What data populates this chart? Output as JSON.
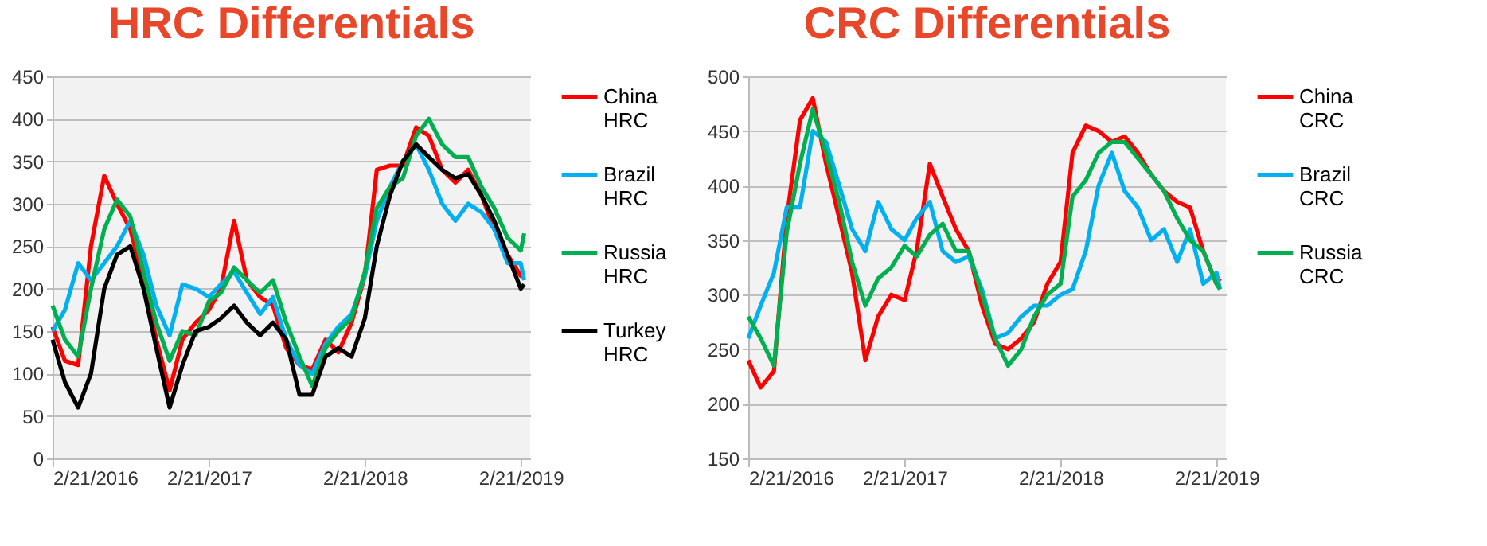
{
  "chart_data": [
    {
      "type": "line",
      "title": "HRC Differentials",
      "x": [
        "2016-02-21",
        "2016-03-21",
        "2016-04-21",
        "2016-05-21",
        "2016-06-21",
        "2016-07-21",
        "2016-08-21",
        "2016-09-21",
        "2016-10-21",
        "2016-11-21",
        "2016-12-21",
        "2017-01-21",
        "2017-02-21",
        "2017-03-21",
        "2017-04-21",
        "2017-05-21",
        "2017-06-21",
        "2017-07-21",
        "2017-08-21",
        "2017-09-21",
        "2017-10-21",
        "2017-11-21",
        "2017-12-21",
        "2018-01-21",
        "2018-02-21",
        "2018-03-21",
        "2018-04-21",
        "2018-05-21",
        "2018-06-21",
        "2018-07-21",
        "2018-08-21",
        "2018-09-21",
        "2018-10-21",
        "2018-11-21",
        "2018-12-21",
        "2019-01-21",
        "2019-02-21",
        "2019-03-01"
      ],
      "series": [
        {
          "name": "China HRC",
          "color": "#ff0000",
          "values": [
            155,
            115,
            110,
            250,
            333,
            300,
            270,
            210,
            140,
            80,
            140,
            160,
            175,
            200,
            280,
            210,
            190,
            180,
            130,
            110,
            105,
            140,
            125,
            160,
            215,
            340,
            345,
            345,
            390,
            380,
            340,
            325,
            340,
            310,
            270,
            240,
            215,
            215
          ]
        },
        {
          "name": "Brazil HRC",
          "color": "#00b0f0",
          "values": [
            150,
            175,
            230,
            210,
            230,
            250,
            280,
            240,
            180,
            145,
            205,
            200,
            190,
            205,
            220,
            195,
            170,
            190,
            140,
            110,
            100,
            135,
            155,
            170,
            215,
            280,
            320,
            350,
            370,
            340,
            300,
            280,
            300,
            290,
            270,
            230,
            230,
            210
          ]
        },
        {
          "name": "Russia HRC",
          "color": "#00b050",
          "values": [
            180,
            140,
            120,
            200,
            270,
            305,
            285,
            220,
            160,
            115,
            150,
            145,
            185,
            195,
            225,
            210,
            195,
            210,
            160,
            120,
            85,
            130,
            150,
            165,
            220,
            295,
            320,
            330,
            380,
            400,
            370,
            355,
            355,
            320,
            295,
            260,
            245,
            265
          ]
        },
        {
          "name": "Turkey HRC",
          "color": "#000000",
          "values": [
            140,
            90,
            60,
            100,
            200,
            240,
            250,
            200,
            130,
            60,
            110,
            150,
            155,
            165,
            180,
            160,
            145,
            160,
            140,
            75,
            75,
            120,
            130,
            120,
            165,
            250,
            310,
            350,
            370,
            355,
            340,
            330,
            335,
            310,
            280,
            240,
            200,
            205
          ]
        }
      ],
      "xlim": [
        "2016-02-21",
        "2019-03-15"
      ],
      "xticks": [
        {
          "value": "2016-02-21",
          "label": "2/21/2016"
        },
        {
          "value": "2017-02-21",
          "label": "2/21/2017"
        },
        {
          "value": "2018-02-21",
          "label": "2/21/2018"
        },
        {
          "value": "2019-02-21",
          "label": "2/21/2019"
        }
      ],
      "ylim": [
        0,
        450
      ],
      "yticks": [
        0,
        50,
        100,
        150,
        200,
        250,
        300,
        350,
        400,
        450
      ],
      "grid": "y",
      "legend": "right",
      "line_style": "solid",
      "marker": "none"
    },
    {
      "type": "line",
      "title": "CRC Differentials",
      "x": [
        "2016-02-21",
        "2016-03-21",
        "2016-04-21",
        "2016-05-21",
        "2016-06-21",
        "2016-07-21",
        "2016-08-21",
        "2016-09-21",
        "2016-10-21",
        "2016-11-21",
        "2016-12-21",
        "2017-01-21",
        "2017-02-21",
        "2017-03-21",
        "2017-04-21",
        "2017-05-21",
        "2017-06-21",
        "2017-07-21",
        "2017-08-21",
        "2017-09-21",
        "2017-10-21",
        "2017-11-21",
        "2017-12-21",
        "2018-01-21",
        "2018-02-21",
        "2018-03-21",
        "2018-04-21",
        "2018-05-21",
        "2018-06-21",
        "2018-07-21",
        "2018-08-21",
        "2018-09-21",
        "2018-10-21",
        "2018-11-21",
        "2018-12-21",
        "2019-01-21",
        "2019-02-21",
        "2019-03-01"
      ],
      "series": [
        {
          "name": "China CRC",
          "color": "#ff0000",
          "values": [
            240,
            215,
            230,
            370,
            460,
            480,
            420,
            370,
            320,
            240,
            280,
            300,
            295,
            340,
            420,
            390,
            360,
            340,
            290,
            255,
            250,
            260,
            275,
            310,
            330,
            430,
            455,
            450,
            440,
            445,
            430,
            410,
            395,
            385,
            380,
            340,
            310,
            315
          ]
        },
        {
          "name": "Brazil CRC",
          "color": "#00b0f0",
          "values": [
            260,
            290,
            320,
            380,
            380,
            450,
            440,
            400,
            360,
            340,
            385,
            360,
            350,
            370,
            385,
            340,
            330,
            335,
            305,
            260,
            265,
            280,
            290,
            290,
            300,
            305,
            340,
            400,
            430,
            395,
            380,
            350,
            360,
            330,
            360,
            310,
            320,
            305
          ]
        },
        {
          "name": "Russia CRC",
          "color": "#00b050",
          "values": [
            280,
            260,
            235,
            357,
            420,
            470,
            430,
            385,
            330,
            290,
            315,
            325,
            345,
            335,
            355,
            365,
            340,
            340,
            300,
            260,
            235,
            250,
            280,
            300,
            310,
            390,
            405,
            430,
            440,
            440,
            425,
            410,
            395,
            370,
            350,
            340,
            310,
            305
          ]
        }
      ],
      "xlim": [
        "2016-02-21",
        "2019-03-15"
      ],
      "xticks": [
        {
          "value": "2016-02-21",
          "label": "2/21/2016"
        },
        {
          "value": "2017-02-21",
          "label": "2/21/2017"
        },
        {
          "value": "2018-02-21",
          "label": "2/21/2018"
        },
        {
          "value": "2019-02-21",
          "label": "2/21/2019"
        }
      ],
      "ylim": [
        150,
        500
      ],
      "yticks": [
        150,
        200,
        250,
        300,
        350,
        400,
        450,
        500
      ],
      "grid": "y",
      "legend": "right",
      "line_style": "solid",
      "marker": "none"
    }
  ]
}
